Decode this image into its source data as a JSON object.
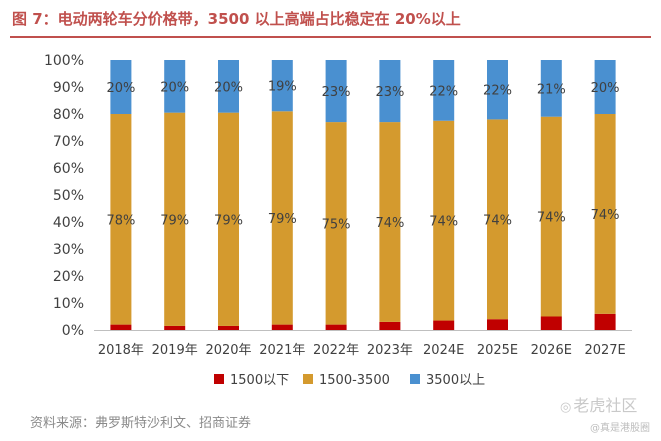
{
  "title": "图 7：电动两轮车分价格带，3500 以上高端占比稳定在 20%以上",
  "source": "资料来源：弗罗斯特沙利文、招商证券",
  "watermark": {
    "main": "老虎社区",
    "sub": "@真是港股圈",
    "icon": "tiger-icon"
  },
  "chart_data": {
    "type": "bar",
    "stacked": true,
    "categories": [
      "2018年",
      "2019年",
      "2020年",
      "2021年",
      "2022年",
      "2023年",
      "2024E",
      "2025E",
      "2026E",
      "2027E"
    ],
    "series": [
      {
        "name": "1500以下",
        "color": "#C00000",
        "values": [
          2,
          1.5,
          1.5,
          2,
          2,
          3,
          3.5,
          4,
          5,
          6
        ]
      },
      {
        "name": "1500-3500",
        "color": "#D49A2E",
        "values": [
          78,
          79,
          79,
          79,
          75,
          74,
          74,
          74,
          74,
          74
        ]
      },
      {
        "name": "3500以上",
        "color": "#4A90D0",
        "values": [
          20,
          19.5,
          19.5,
          19,
          23,
          23,
          22.5,
          22,
          21,
          20
        ]
      }
    ],
    "data_labels": {
      "1500-3500": [
        "78%",
        "79%",
        "79%",
        "79%",
        "75%",
        "74%",
        "74%",
        "74%",
        "74%",
        "74%"
      ],
      "3500以上": [
        "20%",
        "20%",
        "20%",
        "19%",
        "23%",
        "23%",
        "22%",
        "22%",
        "21%",
        "20%"
      ]
    },
    "ylim": [
      0,
      100
    ],
    "yticks": [
      "0%",
      "10%",
      "20%",
      "30%",
      "40%",
      "50%",
      "60%",
      "70%",
      "80%",
      "90%",
      "100%"
    ],
    "grid": false,
    "legend": "bottom"
  }
}
